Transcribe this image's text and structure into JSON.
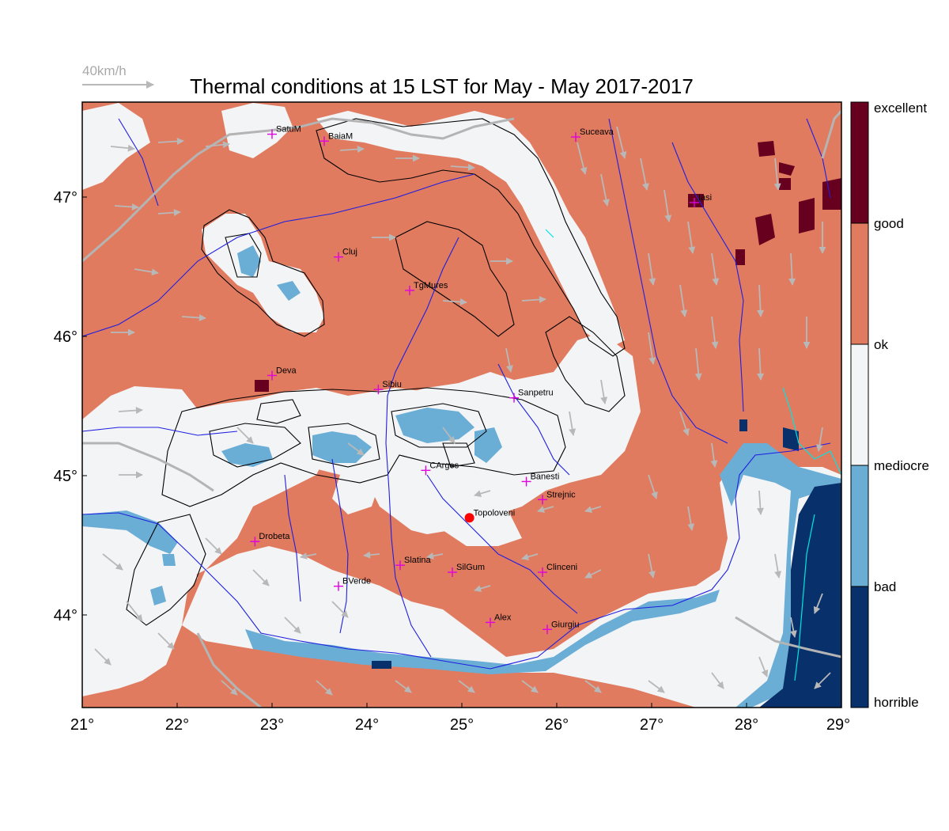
{
  "title": "Thermal conditions at 15 LST for May - May  2017-2017",
  "wind_reference": "40km/h",
  "axes": {
    "x_ticks": [
      "21°",
      "22°",
      "23°",
      "24°",
      "25°",
      "26°",
      "27°",
      "28°",
      "29°"
    ],
    "y_ticks": [
      "47°",
      "46°",
      "45°",
      "44°"
    ]
  },
  "legend": {
    "labels": [
      "excellent",
      "good",
      "ok",
      "mediocre",
      "bad",
      "horrible"
    ],
    "colors": [
      "#67001f",
      "#e07b5f",
      "#f3f4f6",
      "#6aaed6",
      "#08306b"
    ]
  },
  "cities": [
    {
      "name": "SatuM",
      "lon": 23.0,
      "lat": 47.44
    },
    {
      "name": "BaiaM",
      "lon": 23.55,
      "lat": 47.39
    },
    {
      "name": "Suceava",
      "lon": 26.2,
      "lat": 47.42
    },
    {
      "name": "Iasi",
      "lon": 27.45,
      "lat": 46.95
    },
    {
      "name": "Cluj",
      "lon": 23.7,
      "lat": 46.56
    },
    {
      "name": "TgMures",
      "lon": 24.45,
      "lat": 46.32
    },
    {
      "name": "Deva",
      "lon": 23.0,
      "lat": 45.71
    },
    {
      "name": "Sibiu",
      "lon": 24.12,
      "lat": 45.61
    },
    {
      "name": "Sanpetru",
      "lon": 25.55,
      "lat": 45.55
    },
    {
      "name": "CArges",
      "lon": 24.62,
      "lat": 45.03
    },
    {
      "name": "Banesti",
      "lon": 25.68,
      "lat": 44.95
    },
    {
      "name": "Strejnic",
      "lon": 25.85,
      "lat": 44.82
    },
    {
      "name": "Topoloveni",
      "lon": 25.08,
      "lat": 44.69,
      "highlight": true
    },
    {
      "name": "Drobeta",
      "lon": 22.82,
      "lat": 44.52
    },
    {
      "name": "Slatina",
      "lon": 24.35,
      "lat": 44.35
    },
    {
      "name": "SilGum",
      "lon": 24.9,
      "lat": 44.3
    },
    {
      "name": "Clinceni",
      "lon": 25.85,
      "lat": 44.3
    },
    {
      "name": "BVerde",
      "lon": 23.7,
      "lat": 44.2
    },
    {
      "name": "Alex",
      "lon": 25.3,
      "lat": 43.94
    },
    {
      "name": "Giurgiu",
      "lon": 25.9,
      "lat": 43.89
    }
  ],
  "colors": {
    "marker": "#e000e0",
    "highlight": "#ff0000",
    "river": "#1f1fe0",
    "border": "#b4b4b4",
    "wind": "#b8b8b8",
    "coast": "#00e5e5"
  }
}
